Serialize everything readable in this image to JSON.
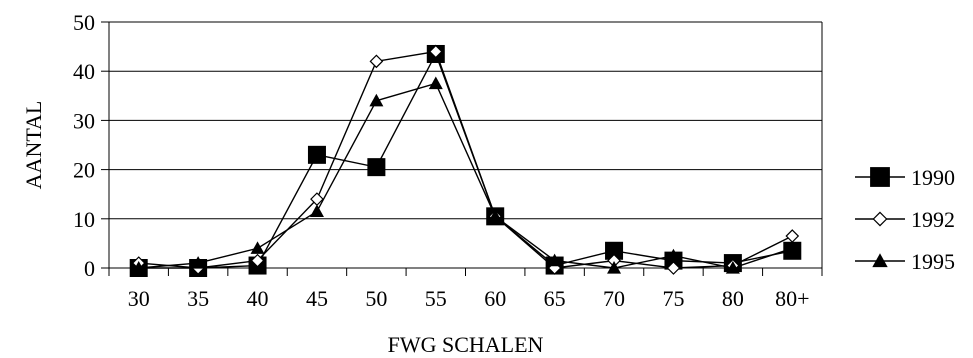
{
  "chart_data": {
    "type": "line",
    "title": "",
    "xlabel": "FWG SCHALEN",
    "ylabel": "AANTAL",
    "categories": [
      "30",
      "35",
      "40",
      "45",
      "50",
      "55",
      "60",
      "65",
      "70",
      "75",
      "80",
      "80+"
    ],
    "ylim": [
      0,
      50
    ],
    "yticks": [
      0,
      10,
      20,
      30,
      40,
      50
    ],
    "grid": "horizontal",
    "legend_position": "right",
    "series": [
      {
        "name": "1990",
        "marker": "square",
        "color": "#000000",
        "values": [
          0,
          0,
          0.5,
          23,
          20.5,
          43.5,
          10.5,
          0.5,
          3.5,
          1.5,
          1,
          3.5
        ]
      },
      {
        "name": "1992",
        "marker": "diamond-open",
        "color": "#000000",
        "values": [
          1,
          0,
          1.5,
          14,
          42,
          44,
          10.5,
          0,
          1.5,
          0,
          0.5,
          6.5
        ]
      },
      {
        "name": "1995",
        "marker": "triangle",
        "color": "#000000",
        "values": [
          0,
          1,
          4,
          11.5,
          34,
          37.5,
          10.5,
          1.5,
          0,
          2.5,
          0,
          4
        ]
      }
    ]
  }
}
